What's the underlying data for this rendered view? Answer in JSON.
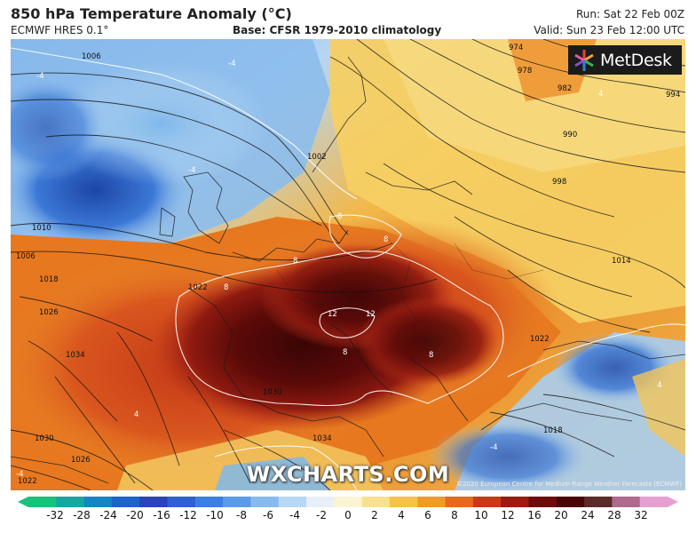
{
  "header": {
    "title": "850 hPa Temperature Anomaly (°C)",
    "model": "ECMWF HRES 0.1°",
    "base": "Base: CFSR 1979-2010 climatology",
    "run": "Run: Sat 22 Feb 00Z",
    "valid": "Valid: Sun 23 Feb 12:00 UTC"
  },
  "logo": {
    "text": "MetDesk",
    "colors": [
      "#e0443a",
      "#f2a23c",
      "#3fb24f",
      "#2e86d6",
      "#8a4bd0"
    ]
  },
  "watermark": "WXCHARTS.COM",
  "attribution": "©2020 European Centre for Medium-Range Weather Forecasts (ECMWF)",
  "map": {
    "isobar_labels": [
      "1006",
      "1002",
      "974",
      "978",
      "982",
      "990",
      "994",
      "998",
      "1010",
      "1006",
      "1018",
      "1026",
      "1034",
      "1030",
      "1026",
      "1022",
      "1034",
      "1022",
      "1018",
      "1014",
      "1030",
      "1022"
    ],
    "anomaly_labels": [
      "-4",
      "-4",
      "-4",
      "4",
      "8",
      "8",
      "8",
      "8",
      "12",
      "12",
      "8",
      "8",
      "4",
      "-4",
      "4",
      "-4"
    ]
  },
  "colorbar": {
    "ticks": [
      "-32",
      "-28",
      "-24",
      "-20",
      "-16",
      "-12",
      "-10",
      "-8",
      "-6",
      "-4",
      "-2",
      "0",
      "2",
      "4",
      "6",
      "8",
      "10",
      "12",
      "16",
      "20",
      "24",
      "28",
      "32"
    ],
    "colors": [
      "#18c27a",
      "#1aa6a0",
      "#1585c4",
      "#1d63c8",
      "#2a44b8",
      "#2f5fd0",
      "#3c7fe0",
      "#5a9ce8",
      "#86bbf0",
      "#b7d8f5",
      "#e7f0f8",
      "#fbf4d2",
      "#f9e08e",
      "#f6c24a",
      "#f09a2a",
      "#e46a1f",
      "#c83a17",
      "#9c1a10",
      "#6e0c0a",
      "#4a0606",
      "#5b2a2a",
      "#b06a8e",
      "#e6a0d0"
    ]
  }
}
